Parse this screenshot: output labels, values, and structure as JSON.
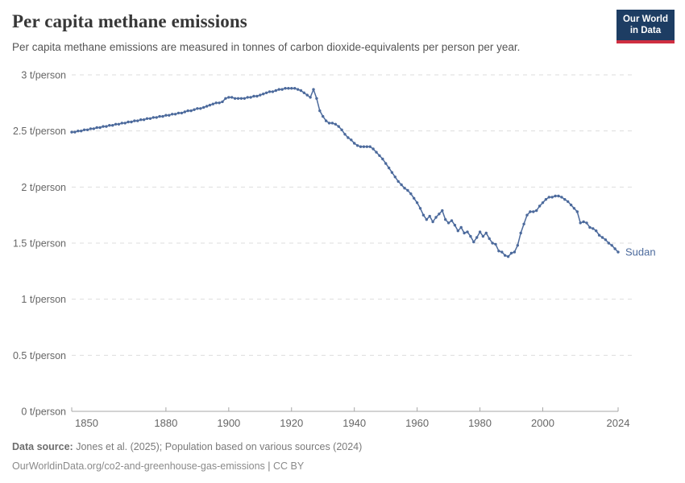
{
  "header": {
    "title": "Per capita methane emissions",
    "subtitle": "Per capita methane emissions are measured in tonnes of carbon dioxide-equivalents per person per year.",
    "logo": {
      "line1": "Our World",
      "line2": "in Data"
    }
  },
  "chart_data": {
    "type": "line",
    "title": "Per capita methane emissions",
    "unit": "t/person",
    "xlabel": "",
    "ylabel": "",
    "x_range": [
      1850,
      2024
    ],
    "y_range": [
      0,
      3
    ],
    "grid": "dashed horizontal gridlines, on",
    "legend_position": "end-of-line label",
    "x_ticks": [
      1850,
      1880,
      1900,
      1920,
      1940,
      1960,
      1980,
      2000,
      2024
    ],
    "y_ticks": [
      {
        "value": 0,
        "label": "0 t/person"
      },
      {
        "value": 0.5,
        "label": "0.5 t/person"
      },
      {
        "value": 1,
        "label": "1 t/person"
      },
      {
        "value": 1.5,
        "label": "1.5 t/person"
      },
      {
        "value": 2,
        "label": "2 t/person"
      },
      {
        "value": 2.5,
        "label": "2.5 t/person"
      },
      {
        "value": 3,
        "label": "3 t/person"
      }
    ],
    "series": [
      {
        "name": "Sudan",
        "color": "#4c6a9c",
        "x_start": 1850,
        "x_step": 1,
        "values": [
          2.49,
          2.49,
          2.5,
          2.5,
          2.51,
          2.51,
          2.52,
          2.52,
          2.53,
          2.53,
          2.54,
          2.54,
          2.55,
          2.55,
          2.56,
          2.56,
          2.57,
          2.57,
          2.58,
          2.58,
          2.59,
          2.59,
          2.6,
          2.6,
          2.61,
          2.61,
          2.62,
          2.62,
          2.63,
          2.63,
          2.64,
          2.64,
          2.65,
          2.65,
          2.66,
          2.66,
          2.67,
          2.68,
          2.68,
          2.69,
          2.7,
          2.7,
          2.71,
          2.72,
          2.73,
          2.74,
          2.75,
          2.75,
          2.76,
          2.79,
          2.8,
          2.8,
          2.79,
          2.79,
          2.79,
          2.79,
          2.8,
          2.8,
          2.81,
          2.81,
          2.82,
          2.83,
          2.84,
          2.85,
          2.85,
          2.86,
          2.87,
          2.87,
          2.88,
          2.88,
          2.88,
          2.88,
          2.87,
          2.86,
          2.84,
          2.82,
          2.8,
          2.87,
          2.79,
          2.68,
          2.63,
          2.59,
          2.57,
          2.57,
          2.56,
          2.54,
          2.51,
          2.47,
          2.44,
          2.42,
          2.39,
          2.37,
          2.36,
          2.36,
          2.36,
          2.36,
          2.34,
          2.31,
          2.28,
          2.25,
          2.21,
          2.17,
          2.13,
          2.09,
          2.05,
          2.02,
          1.99,
          1.97,
          1.94,
          1.9,
          1.86,
          1.81,
          1.75,
          1.71,
          1.74,
          1.69,
          1.73,
          1.76,
          1.79,
          1.71,
          1.68,
          1.7,
          1.66,
          1.61,
          1.64,
          1.59,
          1.6,
          1.56,
          1.51,
          1.55,
          1.6,
          1.56,
          1.59,
          1.54,
          1.5,
          1.49,
          1.43,
          1.42,
          1.39,
          1.38,
          1.41,
          1.42,
          1.48,
          1.59,
          1.67,
          1.75,
          1.78,
          1.78,
          1.79,
          1.83,
          1.86,
          1.89,
          1.91,
          1.91,
          1.92,
          1.92,
          1.91,
          1.89,
          1.87,
          1.84,
          1.81,
          1.78,
          1.68,
          1.69,
          1.68,
          1.64,
          1.63,
          1.61,
          1.57,
          1.55,
          1.53,
          1.5,
          1.48,
          1.45,
          1.42
        ]
      }
    ]
  },
  "footer": {
    "data_source_label": "Data source:",
    "data_source_text": "Jones et al. (2025); Population based on various sources (2024)",
    "link": "OurWorldinData.org/co2-and-greenhouse-gas-emissions",
    "separator": "|",
    "license": "CC BY"
  },
  "colors": {
    "line": "#4c6a9c",
    "grid": "#dddddd",
    "axis": "#a7a7a7",
    "tick_label": "#666666",
    "logo_bg": "#1d3d63",
    "logo_red": "#cf2e41"
  }
}
